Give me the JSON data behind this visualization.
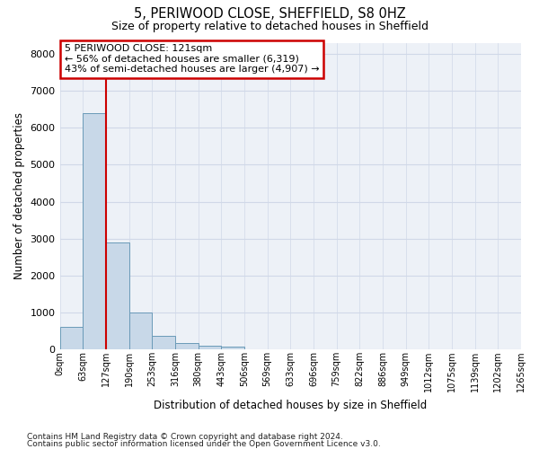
{
  "title1": "5, PERIWOOD CLOSE, SHEFFIELD, S8 0HZ",
  "title2": "Size of property relative to detached houses in Sheffield",
  "xlabel": "Distribution of detached houses by size in Sheffield",
  "ylabel": "Number of detached properties",
  "bar_values": [
    620,
    6400,
    2900,
    1000,
    380,
    170,
    100,
    80,
    0,
    0,
    0,
    0,
    0,
    0,
    0,
    0,
    0,
    0,
    0,
    0
  ],
  "bin_labels": [
    "0sqm",
    "63sqm",
    "127sqm",
    "190sqm",
    "253sqm",
    "316sqm",
    "380sqm",
    "443sqm",
    "506sqm",
    "569sqm",
    "633sqm",
    "696sqm",
    "759sqm",
    "822sqm",
    "886sqm",
    "949sqm",
    "1012sqm",
    "1075sqm",
    "1139sqm",
    "1202sqm",
    "1265sqm"
  ],
  "n_bars": 20,
  "red_line_x": 2.0,
  "ylim": [
    0,
    8300
  ],
  "yticks": [
    0,
    1000,
    2000,
    3000,
    4000,
    5000,
    6000,
    7000,
    8000
  ],
  "bar_color": "#c8d8e8",
  "bar_edge_color": "#6a9ab8",
  "red_line_color": "#cc0000",
  "annotation_text": "5 PERIWOOD CLOSE: 121sqm\n← 56% of detached houses are smaller (6,319)\n43% of semi-detached houses are larger (4,907) →",
  "annotation_box_color": "#ffffff",
  "annotation_box_edge": "#cc0000",
  "background_color": "#edf1f7",
  "grid_color": "#d0d8e8",
  "footer1": "Contains HM Land Registry data © Crown copyright and database right 2024.",
  "footer2": "Contains public sector information licensed under the Open Government Licence v3.0."
}
